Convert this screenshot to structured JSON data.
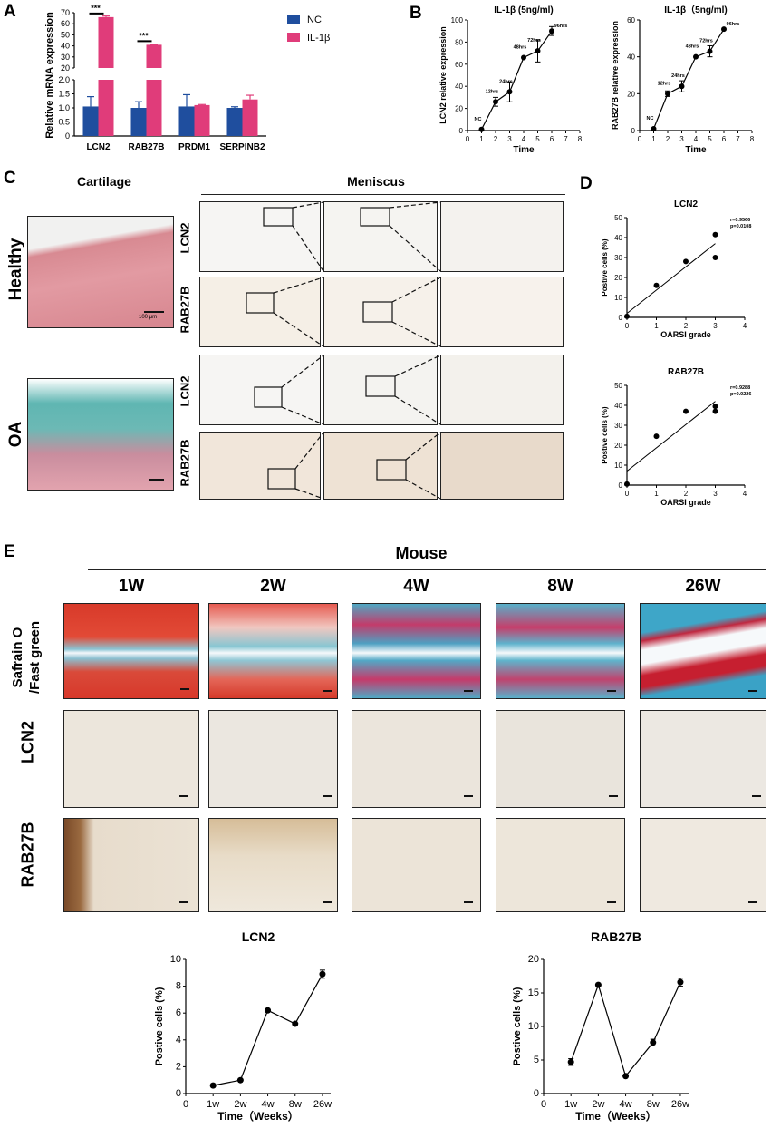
{
  "panel_letters": {
    "a": "A",
    "b": "B",
    "c": "C",
    "d": "D",
    "e": "E"
  },
  "panel_a": {
    "ylabel": "Relative mRNA expression",
    "legend": [
      "NC",
      "IL-1β"
    ],
    "colors": {
      "nc": "#1f4e9e",
      "il1b": "#e03c7a"
    },
    "significance": "***"
  },
  "panel_b": {
    "titles": [
      "IL-1β (5ng/ml)",
      "IL-1β（5ng/ml)"
    ],
    "ylabels": [
      "LCN2 relative expression",
      "RAB27B relative expression"
    ],
    "xlabel": "Time",
    "point_labels": [
      "NC",
      "12hrs",
      "24hrs",
      "48hrs",
      "72hrs",
      "96hrs"
    ]
  },
  "panel_c": {
    "cartilage_label": "Cartilage",
    "meniscus_label": "Meniscus",
    "row_labels": [
      "Healthy",
      "OA"
    ],
    "stain_labels": [
      "LCN2",
      "RAB27B",
      "LCN2",
      "RAB27B"
    ],
    "scale_label": "100 μm"
  },
  "panel_d": {
    "ylabel": "Postive cells (%)",
    "xlabel": "OARSI grade",
    "stats": [
      {
        "title": "LCN2",
        "r": "r=0.9566",
        "p": "p=0.0108"
      },
      {
        "title": "RAB27B",
        "r": "r=0.9288",
        "p": "p=0.0226"
      }
    ]
  },
  "panel_e": {
    "title": "Mouse",
    "timepoints": [
      "1W",
      "2W",
      "4W",
      "8W",
      "26W"
    ],
    "row_labels": [
      "Safrain O\n/Fast green",
      "LCN2",
      "RAB27B"
    ],
    "xlabel": "Time（Weeks）",
    "ylabel": "Postive cells (%)"
  },
  "chart_data": [
    {
      "id": "A",
      "type": "bar",
      "categories": [
        "LCN2",
        "RAB27B",
        "PRDM1",
        "SERPINB2"
      ],
      "ylabel": "Relative mRNA expression",
      "y_break": {
        "lower": [
          0,
          2.0
        ],
        "upper": [
          20,
          70
        ]
      },
      "lower_ticks": [
        0,
        0.5,
        1.0,
        1.5,
        2.0
      ],
      "lower_tick_labels": [
        "0",
        "0.5",
        "1.0",
        "1.5",
        "2.0"
      ],
      "upper_ticks": [
        20,
        30,
        40,
        50,
        60,
        70
      ],
      "series": [
        {
          "name": "NC",
          "values": [
            1.05,
            1.0,
            1.05,
            1.0
          ],
          "errors": [
            0.35,
            0.22,
            0.42,
            0.04
          ]
        },
        {
          "name": "IL-1β",
          "values": [
            66,
            41,
            1.1,
            1.3
          ],
          "errors": [
            1.0,
            0.4,
            0.02,
            0.15
          ]
        }
      ],
      "significance": [
        "***",
        "***",
        "",
        ""
      ]
    },
    {
      "id": "B1",
      "type": "line",
      "title": "IL-1β (5ng/ml)",
      "xlabel": "Time",
      "ylabel": "LCN2 relative expression",
      "x": [
        1,
        2,
        3,
        4,
        5,
        6
      ],
      "y": [
        1,
        26,
        35,
        66,
        72,
        90
      ],
      "errors": [
        0,
        4,
        9,
        0,
        10,
        4
      ],
      "point_labels": [
        "NC",
        "12hrs",
        "24hrs",
        "48hrs",
        "72hrs",
        "96hrs"
      ],
      "xlim": [
        0,
        8
      ],
      "ylim": [
        0,
        100
      ],
      "xticks": [
        0,
        1,
        2,
        3,
        4,
        5,
        6,
        7,
        8
      ],
      "yticks": [
        0,
        20,
        40,
        60,
        80,
        100
      ]
    },
    {
      "id": "B2",
      "type": "line",
      "title": "IL-1β（5ng/ml)",
      "xlabel": "Time",
      "ylabel": "RAB27B relative expression",
      "x": [
        1,
        2,
        3,
        4,
        5,
        6
      ],
      "y": [
        1,
        20,
        24,
        40,
        43,
        55
      ],
      "errors": [
        0,
        1.5,
        3,
        0,
        3,
        0
      ],
      "point_labels": [
        "NC",
        "12hrs",
        "24hrs",
        "48hrs",
        "72hrs",
        "96hrs"
      ],
      "xlim": [
        0,
        8
      ],
      "ylim": [
        0,
        60
      ],
      "xticks": [
        0,
        1,
        2,
        3,
        4,
        5,
        6,
        7,
        8
      ],
      "yticks": [
        0,
        20,
        40,
        60
      ]
    },
    {
      "id": "D1",
      "type": "scatter",
      "title": "LCN2",
      "xlabel": "OARSI grade",
      "ylabel": "Postive cells (%)",
      "x": [
        0,
        1,
        2,
        3,
        3
      ],
      "y": [
        0.5,
        16,
        28,
        41.5,
        30
      ],
      "fit_line": {
        "x": [
          0,
          3
        ],
        "y": [
          2,
          37
        ]
      },
      "annotation": [
        "r=0.9566",
        "p=0.0108"
      ],
      "xlim": [
        0,
        4
      ],
      "ylim": [
        0,
        50
      ],
      "xticks": [
        0,
        1,
        2,
        3,
        4
      ],
      "yticks": [
        0,
        10,
        20,
        30,
        40,
        50
      ]
    },
    {
      "id": "D2",
      "type": "scatter",
      "title": "RAB27B",
      "xlabel": "OARSI grade",
      "ylabel": "Postive cells (%)",
      "x": [
        0,
        1,
        2,
        3,
        3
      ],
      "y": [
        0.5,
        24.5,
        37,
        39.5,
        37
      ],
      "fit_line": {
        "x": [
          0,
          3
        ],
        "y": [
          7,
          42
        ]
      },
      "annotation": [
        "r=0.9288",
        "p=0.0226"
      ],
      "xlim": [
        0,
        4
      ],
      "ylim": [
        0,
        50
      ],
      "xticks": [
        0,
        1,
        2,
        3,
        4
      ],
      "yticks": [
        0,
        10,
        20,
        30,
        40,
        50
      ]
    },
    {
      "id": "E1",
      "type": "line",
      "title": "LCN2",
      "xlabel": "Time（Weeks）",
      "ylabel": "Postive cells (%)",
      "categories": [
        "1w",
        "2w",
        "4w",
        "8w",
        "26w"
      ],
      "y": [
        0.6,
        1.0,
        6.2,
        5.2,
        8.9
      ],
      "errors": [
        0,
        0,
        0,
        0,
        0.3
      ],
      "x_tick_labels": [
        "0",
        "1w",
        "2w",
        "4w",
        "8w",
        "26w"
      ],
      "ylim": [
        0,
        10
      ],
      "yticks": [
        0,
        2,
        4,
        6,
        8,
        10
      ]
    },
    {
      "id": "E2",
      "type": "line",
      "title": "RAB27B",
      "xlabel": "Time（Weeks）",
      "ylabel": "Postive cells (%)",
      "categories": [
        "1w",
        "2w",
        "4w",
        "8w",
        "26w"
      ],
      "y": [
        4.7,
        16.2,
        2.6,
        7.6,
        16.6
      ],
      "errors": [
        0.5,
        0,
        0,
        0.5,
        0.6
      ],
      "x_tick_labels": [
        "0",
        "1w",
        "2w",
        "4w",
        "8w",
        "26w"
      ],
      "ylim": [
        0,
        20
      ],
      "yticks": [
        0,
        5,
        10,
        15,
        20
      ]
    }
  ]
}
